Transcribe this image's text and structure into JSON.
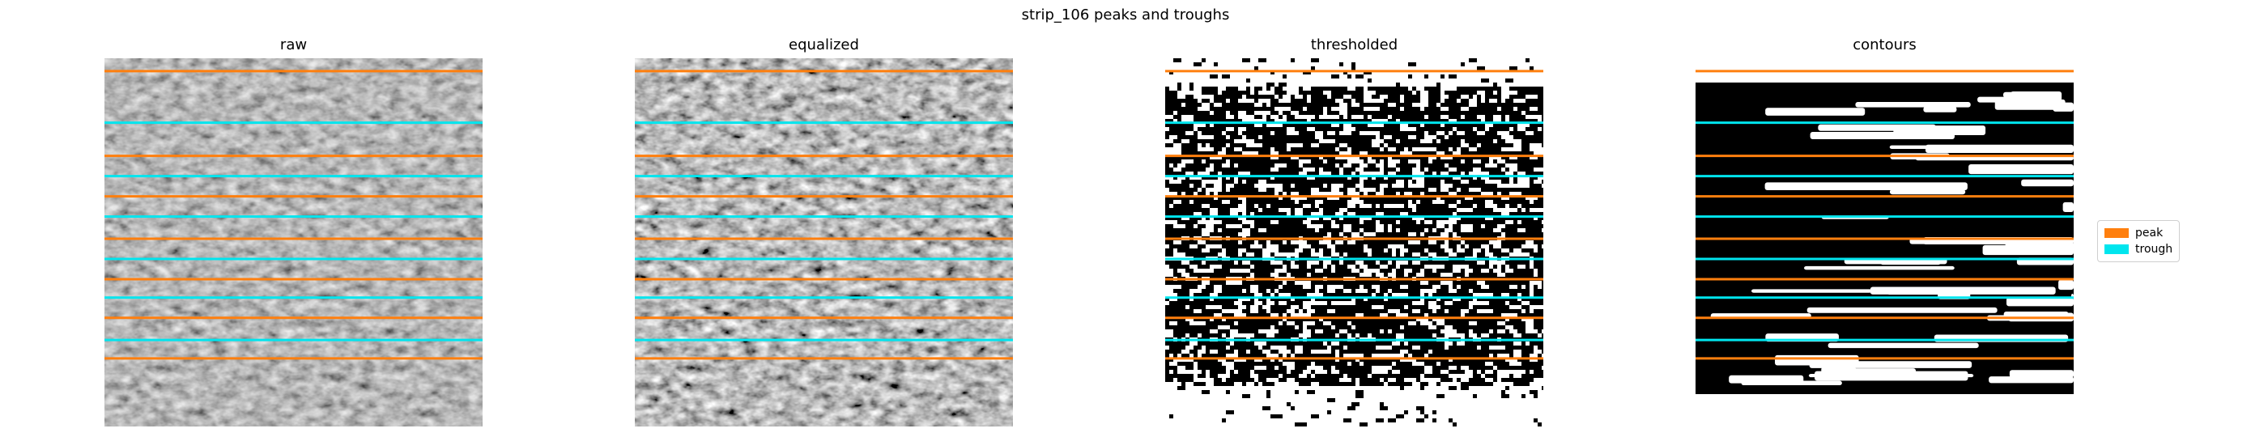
{
  "title": "strip_106 peaks and troughs",
  "panels": [
    {
      "title": "raw"
    },
    {
      "title": "equalized"
    },
    {
      "title": "thresholded"
    },
    {
      "title": "contours"
    }
  ],
  "legend": {
    "peak": {
      "label": "peak",
      "color": "#ff7f0e"
    },
    "trough": {
      "label": "trough",
      "color": "#00e5ee"
    }
  },
  "peak_rows": [
    0.035,
    0.265,
    0.375,
    0.49,
    0.6,
    0.705,
    0.815
  ],
  "trough_rows": [
    0.175,
    0.32,
    0.43,
    0.545,
    0.65,
    0.765
  ]
}
